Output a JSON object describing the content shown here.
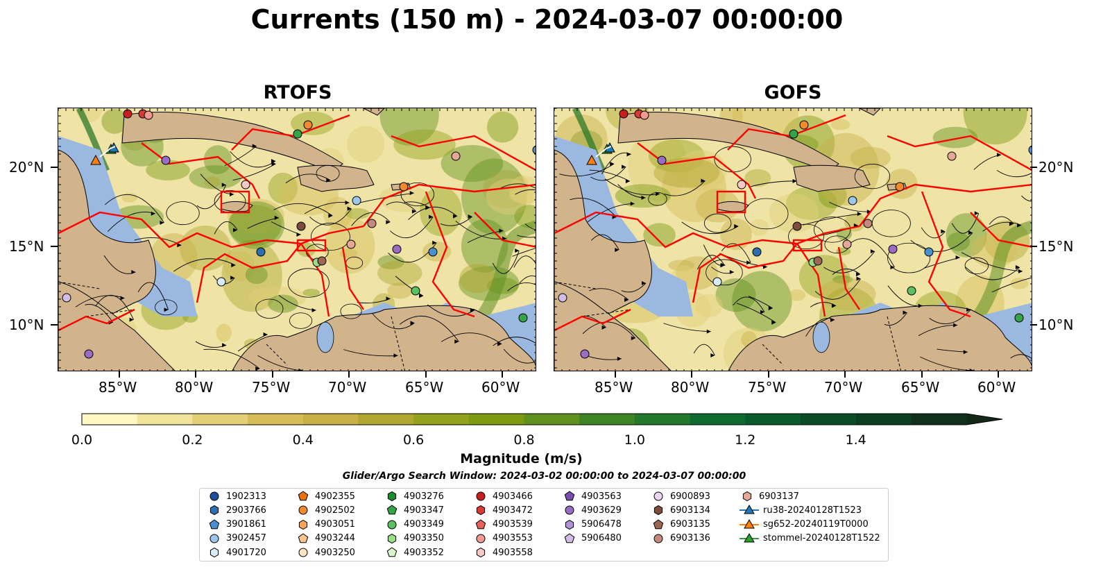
{
  "title": "Currents (150 m) - 2024-03-07 00:00:00",
  "panels": [
    {
      "title": "RTOFS"
    },
    {
      "title": "GOFS"
    }
  ],
  "axes": {
    "lat_labels": [
      "20°N",
      "15°N",
      "10°N"
    ],
    "lon_labels": [
      "85°W",
      "80°W",
      "75°W",
      "70°W",
      "65°W",
      "60°W"
    ]
  },
  "colorbar": {
    "title": "Magnitude (m/s)",
    "ticks": [
      "0.0",
      "0.2",
      "0.4",
      "0.6",
      "0.8",
      "1.0",
      "1.2",
      "1.4"
    ],
    "range": [
      0,
      1.6
    ],
    "extend": "max",
    "colors": [
      "#fff8c4",
      "#f2e49b",
      "#e2cf78",
      "#d6bd58",
      "#c8b046",
      "#b0a632",
      "#92a21c",
      "#7b9a12",
      "#5f9020",
      "#3f8426",
      "#23782c",
      "#0f6a30",
      "#0a5a2c",
      "#0b4c26",
      "#0c3e22",
      "#10301c",
      "#142818"
    ]
  },
  "search_window": "Glider/Argo Search Window: 2024-03-02 00:00:00 to 2024-03-07 00:00:00",
  "colors": {
    "land": "#d2b48c",
    "ocean_shallow": "#9bb8e0",
    "eez_lines": "#ff0000",
    "streamlines": "#000000"
  },
  "legend": {
    "columns": [
      [
        {
          "label": "1902313",
          "marker": "circle",
          "color": "#1f4e9c"
        },
        {
          "label": "2903766",
          "marker": "hexagon",
          "color": "#2f6fb0"
        },
        {
          "label": "3901861",
          "marker": "pentagon",
          "color": "#4a8fd0"
        },
        {
          "label": "3902457",
          "marker": "circle",
          "color": "#9cc6ea"
        },
        {
          "label": "4901720",
          "marker": "hexagon",
          "color": "#d8ebf8"
        }
      ],
      [
        {
          "label": "4902355",
          "marker": "pentagon",
          "color": "#e8700e"
        },
        {
          "label": "4902502",
          "marker": "circle",
          "color": "#f08a2c"
        },
        {
          "label": "4903051",
          "marker": "hexagon",
          "color": "#f5a557"
        },
        {
          "label": "4903244",
          "marker": "pentagon",
          "color": "#f8c48e"
        },
        {
          "label": "4903250",
          "marker": "circle",
          "color": "#fde2c4"
        }
      ],
      [
        {
          "label": "4903276",
          "marker": "hexagon",
          "color": "#1e8a2e"
        },
        {
          "label": "4903347",
          "marker": "pentagon",
          "color": "#33a447"
        },
        {
          "label": "4903349",
          "marker": "circle",
          "color": "#5cc060"
        },
        {
          "label": "4903350",
          "marker": "hexagon",
          "color": "#9ade8c"
        },
        {
          "label": "4903352",
          "marker": "pentagon",
          "color": "#d6f5c8"
        }
      ],
      [
        {
          "label": "4903466",
          "marker": "circle",
          "color": "#c81e1e"
        },
        {
          "label": "4903472",
          "marker": "hexagon",
          "color": "#d83a34"
        },
        {
          "label": "4903539",
          "marker": "pentagon",
          "color": "#e6605a"
        },
        {
          "label": "4903553",
          "marker": "circle",
          "color": "#f09a92"
        },
        {
          "label": "4903558",
          "marker": "hexagon",
          "color": "#f9cac4"
        }
      ],
      [
        {
          "label": "4903563",
          "marker": "pentagon",
          "color": "#7a4db0"
        },
        {
          "label": "4903629",
          "marker": "circle",
          "color": "#9a6cc4"
        },
        {
          "label": "5906478",
          "marker": "hexagon",
          "color": "#b591d6"
        },
        {
          "label": "5906480",
          "marker": "pentagon",
          "color": "#d3bde8"
        }
      ],
      [
        {
          "label": "6900893",
          "marker": "circle",
          "color": "#ecd4f4"
        },
        {
          "label": "6903134",
          "marker": "hexagon",
          "color": "#7e4c3a"
        },
        {
          "label": "6903135",
          "marker": "pentagon",
          "color": "#9c6752"
        },
        {
          "label": "6903136",
          "marker": "circle",
          "color": "#c28a7c"
        }
      ],
      [
        {
          "label": "6903137",
          "marker": "hexagon",
          "color": "#e6a896"
        },
        {
          "label": "ru38-20240128T1523",
          "marker": "triangle-line",
          "color": "#1f77b4"
        },
        {
          "label": "sg652-20240119T0000",
          "marker": "triangle-line",
          "color": "#ff7f0e"
        },
        {
          "label": "stommel-20240128T1522",
          "marker": "triangle-line",
          "color": "#2ca02c"
        }
      ]
    ]
  }
}
